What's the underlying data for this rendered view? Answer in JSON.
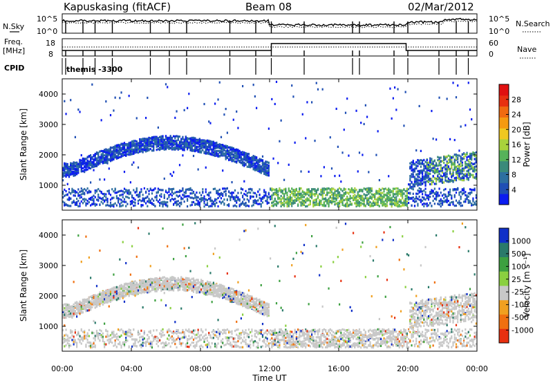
{
  "header": {
    "station": "Kapuskasing (fitACF)",
    "beam": "Beam 08",
    "date": "02/Mar/2012"
  },
  "noise_panel": {
    "left_label": "N.Sky",
    "right_label": "N.Search",
    "left_ticks": [
      "10^5",
      "10^0"
    ],
    "right_ticks": [
      "10^5",
      "10^0"
    ]
  },
  "freq_panel": {
    "left_label_1": "Freq.",
    "left_label_2": "[MHz]",
    "right_label": "Nave",
    "left_ticks": [
      "18",
      "8"
    ],
    "right_ticks": [
      "60",
      "0"
    ]
  },
  "cpid_panel": {
    "label": "CPID",
    "program": "themis -3300"
  },
  "chart_data": [
    {
      "type": "heatmap",
      "name": "power",
      "ylabel": "Slant Range [km]",
      "yticks": [
        "1000",
        "2000",
        "3000",
        "4000"
      ],
      "ylim": [
        180,
        4500
      ],
      "colorbar": {
        "label": "Power [dB]",
        "ticks": [
          "4",
          "8",
          "12",
          "16",
          "20",
          "24",
          "28"
        ],
        "colors": [
          "#0b1cf0",
          "#1f4fb4",
          "#2d6fa0",
          "#3a8a7a",
          "#56b25a",
          "#a8d23c",
          "#f0c820",
          "#f59a10",
          "#f06a10",
          "#e83010",
          "#e01010"
        ]
      }
    },
    {
      "type": "heatmap",
      "name": "velocity",
      "ylabel": "Slant Range [km]",
      "yticks": [
        "1000",
        "2000",
        "3000",
        "4000"
      ],
      "ylim": [
        180,
        4500
      ],
      "colorbar": {
        "label": "Velocity [m s⁻¹]",
        "ticks": [
          "1000",
          "500",
          "100",
          "25",
          "-25",
          "-100",
          "-500",
          "-1000"
        ],
        "colors": [
          "#1030c8",
          "#2a7a6a",
          "#3da040",
          "#8ad040",
          "#c8c8c8",
          "#f0a020",
          "#f07010",
          "#e83010"
        ]
      }
    }
  ],
  "xaxis": {
    "label": "Time UT",
    "ticks": [
      "00:00",
      "04:00",
      "08:00",
      "12:00",
      "16:00",
      "20:00",
      "00:00"
    ]
  }
}
